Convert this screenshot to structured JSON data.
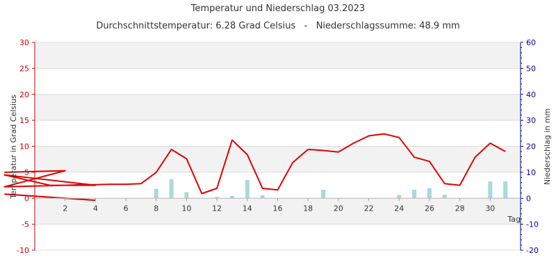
{
  "chart_data": {
    "type": "line",
    "title": "Temperatur und Niederschlag 03.2023",
    "subtitle": "Durchschnittstemperatur: 6.28 Grad Celsius   -   Niederschlagssumme: 48.9 mm",
    "xlabel": "Tag",
    "ylabel_left": "Temperatur in Grad Celsius",
    "ylabel_right": "Niederschlag in mm",
    "xlim": [
      0,
      32
    ],
    "ylim_left": [
      -10,
      30
    ],
    "ylim_right": [
      -20,
      60
    ],
    "x_ticks": [
      2,
      4,
      6,
      8,
      10,
      12,
      14,
      16,
      18,
      20,
      22,
      24,
      26,
      28,
      30
    ],
    "y_ticks_left": [
      -10,
      -5,
      0,
      5,
      10,
      15,
      20,
      25,
      30
    ],
    "y_ticks_right": [
      -20,
      -10,
      0,
      10,
      20,
      30,
      40,
      50,
      60
    ],
    "grid": true,
    "colors": {
      "temperature": "#e00000",
      "precipitation": "#a8d8e0",
      "left_axis": "#cc0000",
      "right_axis": "#000099",
      "band": "#f2f2f2",
      "grid": "#dddddd"
    },
    "temperature": {
      "x": [
        -2,
        2,
        -2,
        2,
        4,
        -2,
        1,
        2,
        3,
        4,
        5,
        6,
        7,
        8,
        9,
        10,
        11,
        12,
        13,
        14,
        15,
        16,
        17,
        18,
        19,
        20,
        21,
        22,
        23,
        24,
        25,
        26,
        27,
        28,
        29,
        30,
        31
      ],
      "values": [
        5,
        5.3,
        2.2,
        2.5,
        2.5,
        4.5,
        2.5,
        2.5,
        2.6,
        2.6,
        2.7,
        2.7,
        2.8,
        5,
        9.4,
        7.6,
        0.9,
        1.9,
        11.2,
        8.4,
        1.9,
        1.6,
        6.9,
        9.4,
        9.2,
        8.9,
        10.6,
        12,
        12.4,
        11.7,
        7.9,
        7.1,
        2.8,
        2.5,
        7.9,
        10.6,
        9
      ]
    },
    "temperature_tail": {
      "x": [
        -2,
        4
      ],
      "values": [
        0.8,
        -0.4
      ]
    },
    "precipitation": {
      "x": [
        8,
        9,
        10,
        12,
        13,
        14,
        15,
        19,
        24,
        25,
        26,
        27,
        30,
        31
      ],
      "values": [
        3.6,
        7.4,
        2.3,
        0.5,
        0.9,
        7,
        1.2,
        3.3,
        1.3,
        3.3,
        3.9,
        1.4,
        6.5,
        6.5
      ]
    }
  }
}
